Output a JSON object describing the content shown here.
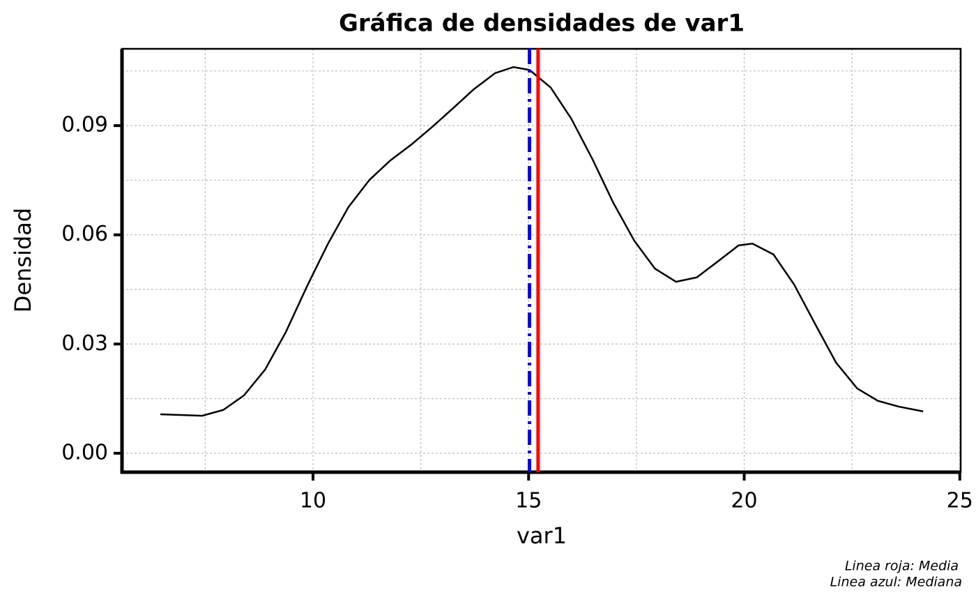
{
  "chart_data": {
    "type": "line",
    "title": "Gráfica de densidades de var1",
    "xlabel": "var1",
    "ylabel": "Densidad",
    "caption": [
      "Linea roja: Media",
      "Linea azul: Mediana"
    ],
    "x": [
      6.46,
      6.95,
      7.43,
      7.92,
      8.4,
      8.89,
      9.37,
      9.85,
      10.34,
      10.82,
      11.31,
      11.79,
      12.28,
      12.76,
      13.25,
      13.73,
      14.22,
      14.65,
      15.02,
      15.51,
      15.99,
      16.48,
      16.96,
      17.45,
      17.93,
      18.42,
      18.9,
      19.39,
      19.87,
      20.19,
      20.68,
      21.16,
      21.65,
      22.13,
      22.62,
      23.1,
      23.59,
      24.15
    ],
    "values": [
      0.0107,
      0.0105,
      0.0103,
      0.0119,
      0.0159,
      0.023,
      0.0333,
      0.0456,
      0.0574,
      0.0676,
      0.0751,
      0.0804,
      0.0848,
      0.0896,
      0.0948,
      0.1,
      0.1044,
      0.1061,
      0.1053,
      0.1005,
      0.0919,
      0.0808,
      0.0689,
      0.0584,
      0.0507,
      0.0471,
      0.0483,
      0.0527,
      0.0571,
      0.0576,
      0.0546,
      0.0463,
      0.0354,
      0.0249,
      0.0178,
      0.0144,
      0.0128,
      0.0115
    ],
    "color": "#000000",
    "vlines": [
      {
        "value": 15.22,
        "color": "#ff0000",
        "style": "solid"
      },
      {
        "value": 15.02,
        "color": "#0000ff",
        "style": "dashdot"
      }
    ],
    "xlim": [
      5.57,
      25.02
    ],
    "ylim": [
      -0.0052,
      0.1111
    ],
    "xticks": [
      10,
      15,
      20,
      25
    ],
    "yticks": [
      {
        "value": 0,
        "label": "0.00"
      },
      0.03,
      0.06,
      0.09
    ],
    "xminorticks": [
      7.5,
      12.5,
      17.5,
      22.5
    ],
    "yminorticks": [
      0.015,
      0.045,
      0.075,
      0.105
    ],
    "grid": true
  }
}
